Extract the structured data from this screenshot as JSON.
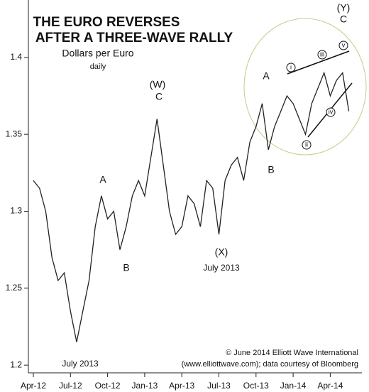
{
  "chart_data": {
    "type": "line",
    "title": [
      "THE EURO REVERSES",
      "AFTER A THREE-WAVE RALLY"
    ],
    "subtitle": [
      "Dollars per Euro",
      "daily"
    ],
    "categories": [
      "Apr-12",
      null,
      null,
      null,
      null,
      null,
      "Jul-12",
      null,
      null,
      null,
      null,
      null,
      "Oct-12",
      null,
      null,
      null,
      null,
      null,
      "Jan-13",
      null,
      null,
      null,
      null,
      null,
      "Apr-13",
      null,
      null,
      null,
      null,
      null,
      "Jul-13",
      null,
      null,
      null,
      null,
      null,
      "Oct-13",
      null,
      null,
      null,
      null,
      null,
      "Jan-14",
      null,
      null,
      null,
      null,
      null,
      "Apr-14",
      null,
      null,
      null
    ],
    "series": [
      {
        "color": "#222222",
        "values": [
          1.32,
          1.315,
          1.3,
          1.27,
          1.255,
          1.26,
          1.235,
          1.215,
          1.235,
          1.255,
          1.29,
          1.31,
          1.295,
          1.3,
          1.275,
          1.29,
          1.31,
          1.32,
          1.31,
          1.335,
          1.36,
          1.33,
          1.3,
          1.285,
          1.29,
          1.31,
          1.305,
          1.29,
          1.32,
          1.315,
          1.285,
          1.32,
          1.33,
          1.335,
          1.32,
          1.345,
          1.355,
          1.37,
          1.34,
          1.355,
          1.365,
          1.375,
          1.37,
          1.36,
          1.35,
          1.37,
          1.38,
          1.39,
          1.375,
          1.385,
          1.39,
          1.365
        ]
      }
    ],
    "ylim": [
      1.195,
      1.435
    ],
    "yticks": [
      1.2,
      1.25,
      1.3,
      1.35,
      1.4
    ],
    "annotations": [
      "(W)",
      "C",
      "A",
      "B",
      "(X)",
      "July 2013",
      "July 2013",
      "A",
      "B",
      "(Y)",
      "C",
      "v",
      "iii",
      "i",
      "iv",
      "ii"
    ],
    "credits": [
      "© June 2014 Elliott Wave International",
      "(www.elliottwave.com); data courtesy of Bloomberg"
    ]
  }
}
